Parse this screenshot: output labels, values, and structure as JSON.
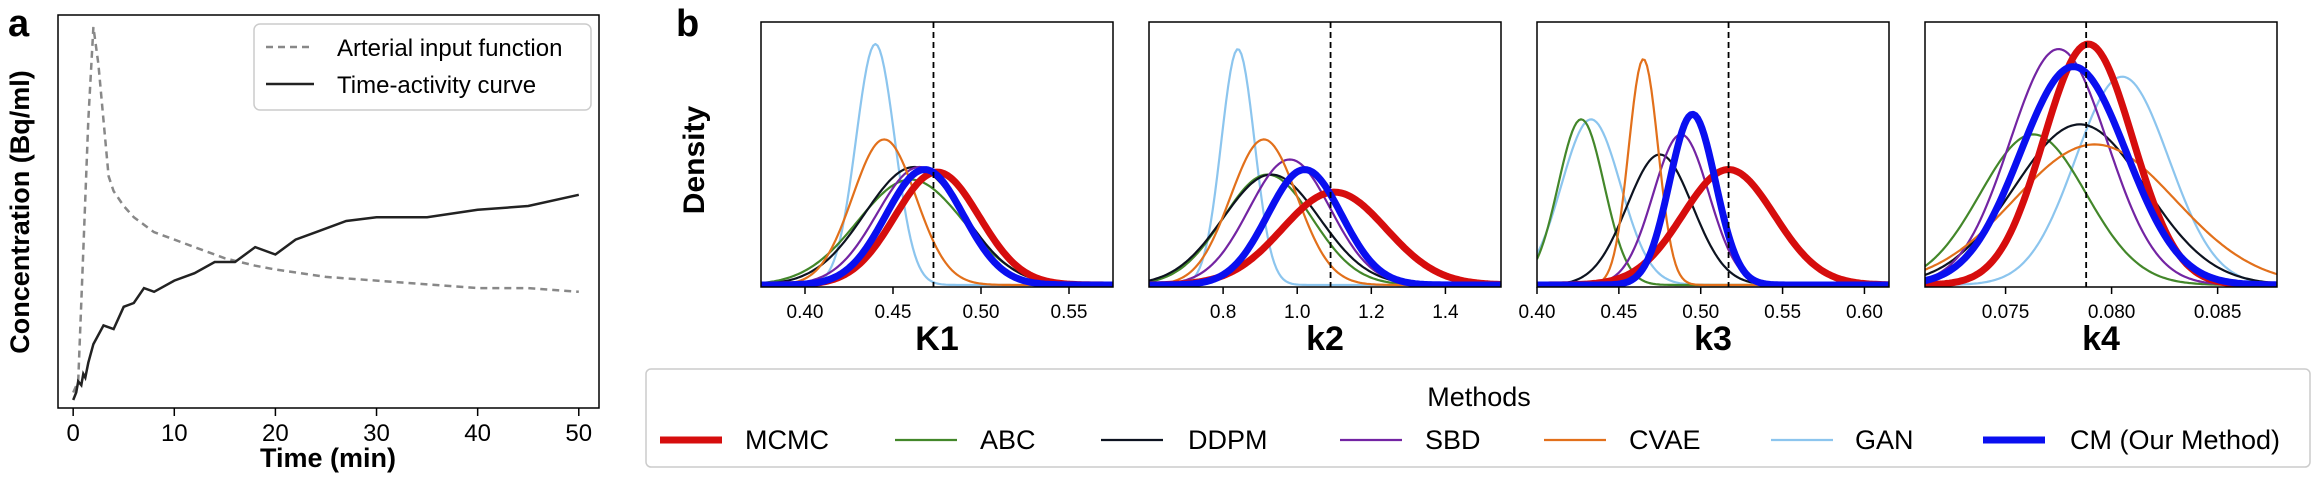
{
  "colors": {
    "MCMC": "#d60d0d",
    "ABC": "#43872a",
    "DDPM": "#0d1320",
    "SBD": "#7324a3",
    "CVAE": "#e2701b",
    "GAN": "#8cc5ee",
    "CM": "#0a0ff0",
    "aif": "#888888",
    "tac": "#222222"
  },
  "chart_data": [
    {
      "type": "line",
      "panel_label": "a",
      "title": "",
      "xlabel": "Time (min)",
      "ylabel": "Concentration (Bq/ml)",
      "xlim": [
        -1.5,
        52
      ],
      "ylim": [
        0,
        1.0
      ],
      "x_ticks": [
        0,
        10,
        20,
        30,
        40,
        50
      ],
      "grid": false,
      "legend_position": "top-right",
      "series": [
        {
          "name": "Arterial input function",
          "style": "dashed",
          "x": [
            0,
            0.5,
            1.0,
            1.5,
            2.0,
            2.5,
            3.0,
            3.5,
            4,
            5,
            6,
            7,
            8,
            10,
            12,
            15,
            18,
            20,
            25,
            30,
            35,
            40,
            45,
            50
          ],
          "y": [
            0.02,
            0.05,
            0.4,
            0.75,
            1.0,
            0.9,
            0.75,
            0.6,
            0.56,
            0.52,
            0.49,
            0.47,
            0.45,
            0.43,
            0.41,
            0.38,
            0.36,
            0.35,
            0.33,
            0.32,
            0.31,
            0.3,
            0.3,
            0.29
          ]
        },
        {
          "name": "Time-activity curve",
          "style": "solid",
          "x": [
            0,
            0.3,
            0.5,
            0.8,
            1.0,
            1.2,
            1.5,
            2,
            3,
            4,
            5,
            6,
            7,
            8,
            10,
            12,
            14,
            16,
            18,
            20,
            22,
            24,
            27,
            30,
            35,
            40,
            45,
            50
          ],
          "y": [
            0.0,
            0.02,
            0.05,
            0.04,
            0.07,
            0.06,
            0.1,
            0.15,
            0.2,
            0.19,
            0.25,
            0.26,
            0.3,
            0.29,
            0.32,
            0.34,
            0.37,
            0.37,
            0.41,
            0.39,
            0.43,
            0.45,
            0.48,
            0.49,
            0.49,
            0.51,
            0.52,
            0.55
          ]
        }
      ]
    },
    {
      "type": "density",
      "panel_label": "b",
      "title": "",
      "ylabel": "Density",
      "legend_title": "Methods",
      "legend_position": "bottom",
      "methods": [
        {
          "key": "MCMC",
          "label": "MCMC",
          "bold": true
        },
        {
          "key": "ABC",
          "label": "ABC",
          "bold": false
        },
        {
          "key": "DDPM",
          "label": "DDPM",
          "bold": false
        },
        {
          "key": "SBD",
          "label": "SBD",
          "bold": false
        },
        {
          "key": "CVAE",
          "label": "CVAE",
          "bold": false
        },
        {
          "key": "GAN",
          "label": "GAN",
          "bold": false
        },
        {
          "key": "CM",
          "label": "CM (Our Method)",
          "bold": true
        }
      ],
      "panels": [
        {
          "xlabel": "K1",
          "xlim": [
            0.375,
            0.575
          ],
          "ylim": [
            0,
            1.0
          ],
          "x_ticks": [
            0.4,
            0.45,
            0.5,
            0.55
          ],
          "tick_labels": [
            "0.40",
            "0.45",
            "0.50",
            "0.55"
          ],
          "true_value": 0.473,
          "curves": {
            "MCMC": {
              "mu": 0.475,
              "sigma": 0.024,
              "peak": 0.45
            },
            "ABC": {
              "mu": 0.46,
              "sigma": 0.03,
              "peak": 0.42
            },
            "DDPM": {
              "mu": 0.462,
              "sigma": 0.028,
              "peak": 0.47
            },
            "SBD": {
              "mu": 0.465,
              "sigma": 0.024,
              "peak": 0.47
            },
            "CVAE": {
              "mu": 0.445,
              "sigma": 0.018,
              "peak": 0.58
            },
            "GAN": {
              "mu": 0.44,
              "sigma": 0.011,
              "peak": 0.96
            },
            "CM": {
              "mu": 0.468,
              "sigma": 0.022,
              "peak": 0.46
            }
          }
        },
        {
          "xlabel": "k2",
          "xlim": [
            0.6,
            1.55
          ],
          "ylim": [
            0,
            1.0
          ],
          "x_ticks": [
            0.8,
            1.0,
            1.2,
            1.4
          ],
          "tick_labels": [
            "0.8",
            "1.0",
            "1.2",
            "1.4"
          ],
          "true_value": 1.09,
          "curves": {
            "MCMC": {
              "mu": 1.1,
              "sigma": 0.14,
              "peak": 0.37
            },
            "ABC": {
              "mu": 0.92,
              "sigma": 0.12,
              "peak": 0.44
            },
            "DDPM": {
              "mu": 0.93,
              "sigma": 0.13,
              "peak": 0.44
            },
            "SBD": {
              "mu": 0.98,
              "sigma": 0.11,
              "peak": 0.5
            },
            "CVAE": {
              "mu": 0.91,
              "sigma": 0.09,
              "peak": 0.58
            },
            "GAN": {
              "mu": 0.84,
              "sigma": 0.045,
              "peak": 0.94
            },
            "CM": {
              "mu": 1.02,
              "sigma": 0.1,
              "peak": 0.46
            }
          }
        },
        {
          "xlabel": "k3",
          "xlim": [
            0.4,
            0.615
          ],
          "ylim": [
            0,
            1.0
          ],
          "x_ticks": [
            0.4,
            0.45,
            0.5,
            0.55,
            0.6
          ],
          "tick_labels": [
            "0.40",
            "0.45",
            "0.50",
            "0.55",
            "0.60"
          ],
          "true_value": 0.517,
          "curves": {
            "MCMC": {
              "mu": 0.517,
              "sigma": 0.028,
              "peak": 0.46
            },
            "ABC": {
              "mu": 0.427,
              "sigma": 0.014,
              "peak": 0.66
            },
            "DDPM": {
              "mu": 0.475,
              "sigma": 0.02,
              "peak": 0.52
            },
            "SBD": {
              "mu": 0.488,
              "sigma": 0.017,
              "peak": 0.6
            },
            "CVAE": {
              "mu": 0.465,
              "sigma": 0.009,
              "peak": 0.9
            },
            "GAN": {
              "mu": 0.433,
              "sigma": 0.018,
              "peak": 0.66
            },
            "CM": {
              "mu": 0.495,
              "sigma": 0.014,
              "peak": 0.68
            }
          }
        },
        {
          "xlabel": "k4",
          "xlim": [
            0.0712,
            0.0878
          ],
          "ylim": [
            0,
            1.0
          ],
          "x_ticks": [
            0.075,
            0.08,
            0.085
          ],
          "tick_labels": [
            "0.075",
            "0.080",
            "0.085"
          ],
          "true_value": 0.0788,
          "curves": {
            "MCMC": {
              "mu": 0.0789,
              "sigma": 0.0021,
              "peak": 0.96
            },
            "ABC": {
              "mu": 0.0763,
              "sigma": 0.0025,
              "peak": 0.6
            },
            "DDPM": {
              "mu": 0.0785,
              "sigma": 0.0031,
              "peak": 0.64
            },
            "SBD": {
              "mu": 0.0775,
              "sigma": 0.0023,
              "peak": 0.94
            },
            "CVAE": {
              "mu": 0.0792,
              "sigma": 0.0038,
              "peak": 0.56
            },
            "GAN": {
              "mu": 0.0805,
              "sigma": 0.0022,
              "peak": 0.83
            },
            "CM": {
              "mu": 0.0782,
              "sigma": 0.0025,
              "peak": 0.87
            }
          }
        }
      ]
    }
  ]
}
